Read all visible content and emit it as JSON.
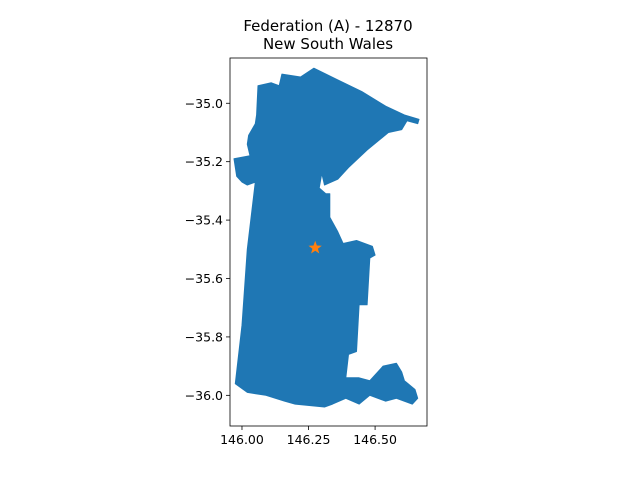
{
  "chart_data": {
    "type": "map",
    "title_line1": "Federation (A) - 12870",
    "title_line2": "New South Wales",
    "xlim": [
      145.955,
      146.695
    ],
    "ylim": [
      -36.105,
      -34.845
    ],
    "x_ticks": [
      {
        "value": 146.0,
        "label": "146.00"
      },
      {
        "value": 146.25,
        "label": "146.25"
      },
      {
        "value": 146.5,
        "label": "146.50"
      }
    ],
    "y_ticks": [
      {
        "value": -35.0,
        "label": "−35.0"
      },
      {
        "value": -35.2,
        "label": "−35.2"
      },
      {
        "value": -35.4,
        "label": "−35.4"
      },
      {
        "value": -35.6,
        "label": "−35.6"
      },
      {
        "value": -35.8,
        "label": "−35.8"
      },
      {
        "value": -36.0,
        "label": "−36.0"
      }
    ],
    "region_color": "#1f77b4",
    "marker_color": "#ff7f0e",
    "marker": {
      "lon": 146.275,
      "lat": -35.495,
      "shape": "star"
    },
    "boundary": [
      [
        146.27,
        -34.88
      ],
      [
        146.36,
        -34.92
      ],
      [
        146.45,
        -34.96
      ],
      [
        146.54,
        -35.01
      ],
      [
        146.61,
        -35.04
      ],
      [
        146.665,
        -35.055
      ],
      [
        146.66,
        -35.07
      ],
      [
        146.62,
        -35.06
      ],
      [
        146.6,
        -35.09
      ],
      [
        146.55,
        -35.1
      ],
      [
        146.47,
        -35.16
      ],
      [
        146.4,
        -35.22
      ],
      [
        146.36,
        -35.26
      ],
      [
        146.31,
        -35.28
      ],
      [
        146.3,
        -35.24
      ],
      [
        146.29,
        -35.29
      ],
      [
        146.315,
        -35.31
      ],
      [
        146.33,
        -35.31
      ],
      [
        146.33,
        -35.39
      ],
      [
        146.36,
        -35.44
      ],
      [
        146.38,
        -35.48
      ],
      [
        146.43,
        -35.47
      ],
      [
        146.49,
        -35.49
      ],
      [
        146.5,
        -35.52
      ],
      [
        146.48,
        -35.53
      ],
      [
        146.47,
        -35.69
      ],
      [
        146.44,
        -35.69
      ],
      [
        146.43,
        -35.85
      ],
      [
        146.4,
        -35.86
      ],
      [
        146.39,
        -35.94
      ],
      [
        146.44,
        -35.94
      ],
      [
        146.48,
        -35.95
      ],
      [
        146.53,
        -35.9
      ],
      [
        146.58,
        -35.89
      ],
      [
        146.6,
        -35.92
      ],
      [
        146.61,
        -35.95
      ],
      [
        146.65,
        -35.98
      ],
      [
        146.66,
        -36.01
      ],
      [
        146.64,
        -36.03
      ],
      [
        146.58,
        -36.01
      ],
      [
        146.54,
        -36.02
      ],
      [
        146.48,
        -36.0
      ],
      [
        146.44,
        -36.03
      ],
      [
        146.39,
        -36.01
      ],
      [
        146.34,
        -36.03
      ],
      [
        146.31,
        -36.04
      ],
      [
        146.2,
        -36.03
      ],
      [
        146.16,
        -36.02
      ],
      [
        146.09,
        -36.0
      ],
      [
        146.02,
        -35.99
      ],
      [
        145.975,
        -35.96
      ],
      [
        146.0,
        -35.76
      ],
      [
        146.02,
        -35.5
      ],
      [
        146.05,
        -35.27
      ],
      [
        146.02,
        -35.28
      ],
      [
        146.0,
        -35.27
      ],
      [
        145.98,
        -35.25
      ],
      [
        145.97,
        -35.19
      ],
      [
        146.03,
        -35.18
      ],
      [
        146.02,
        -35.14
      ],
      [
        146.025,
        -35.11
      ],
      [
        146.05,
        -35.07
      ],
      [
        146.055,
        -35.04
      ],
      [
        146.06,
        -34.94
      ],
      [
        146.11,
        -34.93
      ],
      [
        146.14,
        -34.94
      ],
      [
        146.15,
        -34.9
      ],
      [
        146.22,
        -34.91
      ]
    ]
  }
}
